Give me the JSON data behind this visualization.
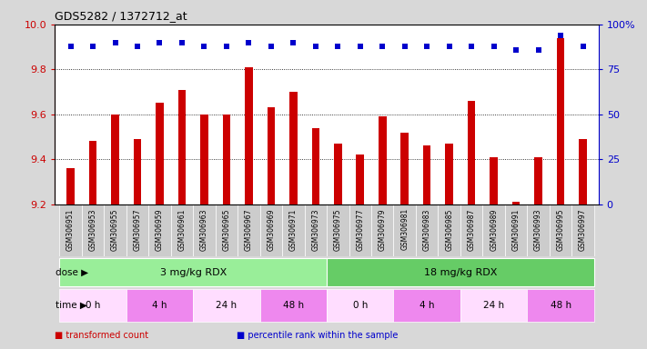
{
  "title": "GDS5282 / 1372712_at",
  "samples": [
    "GSM306951",
    "GSM306953",
    "GSM306955",
    "GSM306957",
    "GSM306959",
    "GSM306961",
    "GSM306963",
    "GSM306965",
    "GSM306967",
    "GSM306969",
    "GSM306971",
    "GSM306973",
    "GSM306975",
    "GSM306977",
    "GSM306979",
    "GSM306981",
    "GSM306983",
    "GSM306985",
    "GSM306987",
    "GSM306989",
    "GSM306991",
    "GSM306993",
    "GSM306995",
    "GSM306997"
  ],
  "bar_values": [
    9.36,
    9.48,
    9.6,
    9.49,
    9.65,
    9.71,
    9.6,
    9.6,
    9.81,
    9.63,
    9.7,
    9.54,
    9.47,
    9.42,
    9.59,
    9.52,
    9.46,
    9.47,
    9.66,
    9.41,
    9.21,
    9.41,
    9.94,
    9.49
  ],
  "percentile_values": [
    88,
    88,
    90,
    88,
    90,
    90,
    88,
    88,
    90,
    88,
    90,
    88,
    88,
    88,
    88,
    88,
    88,
    88,
    88,
    88,
    86,
    86,
    94,
    88
  ],
  "bar_color": "#cc0000",
  "dot_color": "#0000cc",
  "ylim_left": [
    9.2,
    10.0
  ],
  "ylim_right": [
    0,
    100
  ],
  "yticks_left": [
    9.2,
    9.4,
    9.6,
    9.8,
    10.0
  ],
  "yticks_right": [
    0,
    25,
    50,
    75,
    100
  ],
  "grid_values": [
    9.4,
    9.6,
    9.8
  ],
  "dose_labels": [
    {
      "label": "3 mg/kg RDX",
      "start": 0,
      "end": 11,
      "color": "#99ee99"
    },
    {
      "label": "18 mg/kg RDX",
      "start": 12,
      "end": 23,
      "color": "#66cc66"
    }
  ],
  "time_labels": [
    {
      "label": "0 h",
      "start": 0,
      "end": 2,
      "color": "#ffddff"
    },
    {
      "label": "4 h",
      "start": 3,
      "end": 5,
      "color": "#ee88ee"
    },
    {
      "label": "24 h",
      "start": 6,
      "end": 8,
      "color": "#ffddff"
    },
    {
      "label": "48 h",
      "start": 9,
      "end": 11,
      "color": "#ee88ee"
    },
    {
      "label": "0 h",
      "start": 12,
      "end": 14,
      "color": "#ffddff"
    },
    {
      "label": "4 h",
      "start": 15,
      "end": 17,
      "color": "#ee88ee"
    },
    {
      "label": "24 h",
      "start": 18,
      "end": 20,
      "color": "#ffddff"
    },
    {
      "label": "48 h",
      "start": 21,
      "end": 23,
      "color": "#ee88ee"
    }
  ],
  "legend_items": [
    {
      "label": "transformed count",
      "color": "#cc0000",
      "marker": "s"
    },
    {
      "label": "percentile rank within the sample",
      "color": "#0000cc",
      "marker": "s"
    }
  ],
  "bg_color": "#d8d8d8",
  "sample_bg_color": "#cccccc",
  "plot_bg_color": "#ffffff"
}
